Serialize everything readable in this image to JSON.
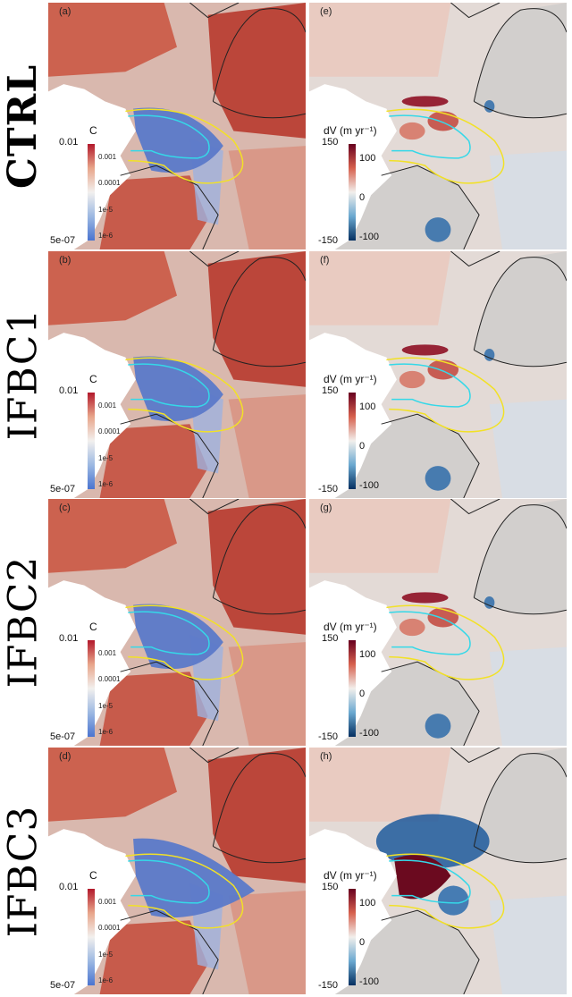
{
  "rows": [
    {
      "label": "CTRL",
      "left_tag": "(a)",
      "right_tag": "(e)",
      "strong": false
    },
    {
      "label": "IFBC1",
      "left_tag": "(b)",
      "right_tag": "(f)",
      "strong": false
    },
    {
      "label": "IFBC2",
      "left_tag": "(c)",
      "right_tag": "(g)",
      "strong": false
    },
    {
      "label": "IFBC3",
      "left_tag": "(d)",
      "right_tag": "(h)",
      "strong": true
    }
  ],
  "left_colorbar": {
    "title": "C",
    "top": "0.01",
    "bottom": "5e-07",
    "minor_ticks": [
      "0.001",
      "0.0001",
      "1e-5",
      "1e-6"
    ],
    "colors": [
      "#b2182b",
      "#e8a58a",
      "#f2f0ee",
      "#9cb8e2",
      "#4a74d0"
    ]
  },
  "right_colorbar": {
    "title": "dV (m yr⁻¹)",
    "top": "150",
    "bottom": "-150",
    "ticks": [
      "100",
      "0",
      "-100"
    ],
    "colors": [
      "#67001f",
      "#d6604d",
      "#f2efec",
      "#6aa8d0",
      "#053061"
    ]
  },
  "colors": {
    "warm": "#c9523e",
    "cool": "#5b79c9",
    "contour_outer": "#f2e126",
    "contour_inner": "#35d8e8",
    "outline": "#222222"
  }
}
